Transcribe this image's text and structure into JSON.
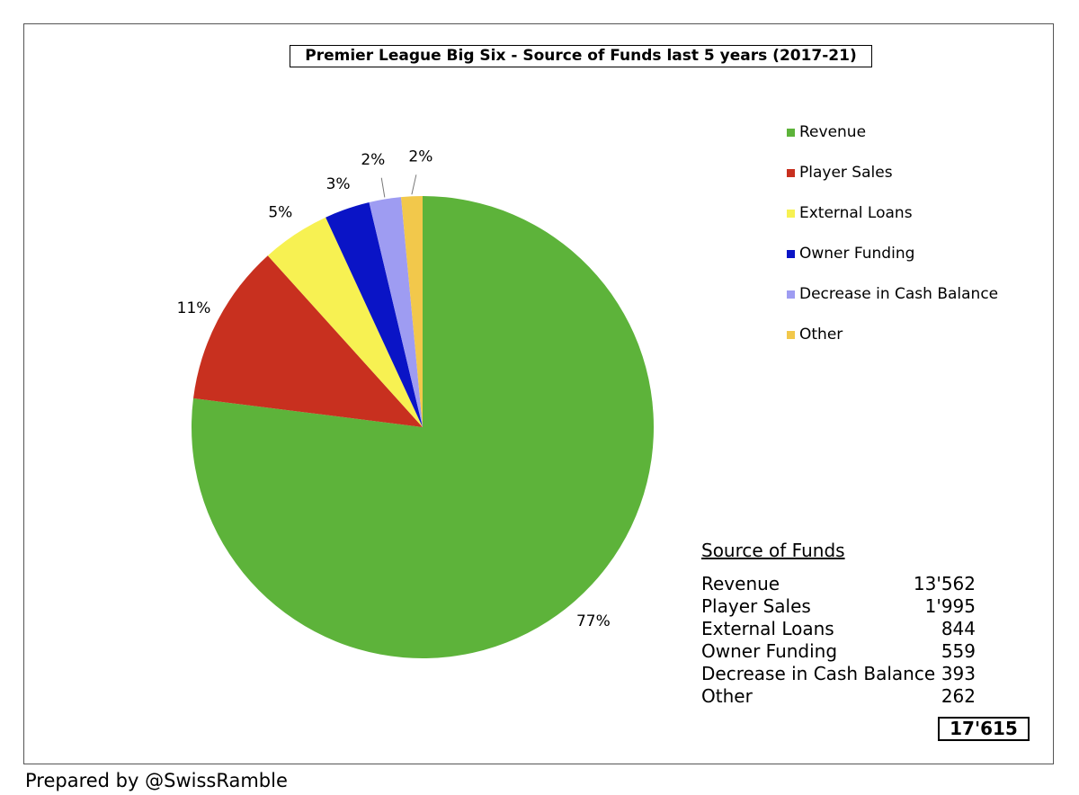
{
  "chart_data": {
    "type": "pie",
    "title": "Premier League Big Six - Source of Funds last 5 years (2017-21)",
    "categories": [
      "Revenue",
      "Player Sales",
      "External Loans",
      "Owner Funding",
      "Decrease in Cash Balance",
      "Other"
    ],
    "values": [
      13562,
      1995,
      844,
      559,
      393,
      262
    ],
    "labels": [
      "77%",
      "11%",
      "5%",
      "3%",
      "2%",
      "2%"
    ],
    "colors": [
      "#5db33a",
      "#c8301f",
      "#f7f152",
      "#0a14c6",
      "#9e9cf2",
      "#f2c84b"
    ],
    "legend_position": "right"
  },
  "table": {
    "title": "Source of Funds",
    "rows": [
      {
        "label": "Revenue",
        "value": "13'562"
      },
      {
        "label": "Player Sales",
        "value": "1'995"
      },
      {
        "label": "External Loans",
        "value": "844"
      },
      {
        "label": "Owner Funding",
        "value": "559"
      },
      {
        "label": "Decrease in Cash Balance",
        "value": "393"
      },
      {
        "label": "Other",
        "value": "262"
      }
    ],
    "total": "17'615"
  },
  "footer": "Prepared by @SwissRamble"
}
